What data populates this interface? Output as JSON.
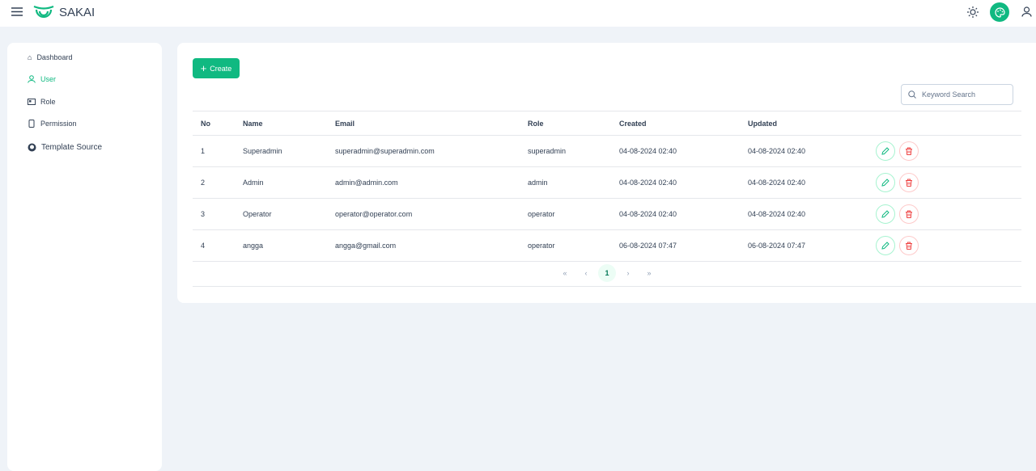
{
  "app": {
    "name": "SAKAI",
    "accent": "#10b981"
  },
  "topbar": {
    "icons": [
      "menu-icon",
      "sun-icon",
      "palette-icon",
      "user-icon"
    ]
  },
  "sidebar": {
    "items": [
      {
        "label": "Dashboard",
        "icon": "home-icon"
      },
      {
        "label": "User",
        "icon": "user-icon",
        "active": true
      },
      {
        "label": "Role",
        "icon": "id-card-icon"
      },
      {
        "label": "Permission",
        "icon": "mobile-icon"
      },
      {
        "label": "Template Source",
        "icon": "github-icon"
      }
    ]
  },
  "main": {
    "create_label": "Create",
    "search": {
      "placeholder": "Keyword Search",
      "value": ""
    },
    "table": {
      "columns": [
        "No",
        "Name",
        "Email",
        "Role",
        "Created",
        "Updated"
      ],
      "rows": [
        [
          "1",
          "Superadmin",
          "superadmin@superadmin.com",
          "superadmin",
          "04-08-2024 02:40",
          "04-08-2024 02:40"
        ],
        [
          "2",
          "Admin",
          "admin@admin.com",
          "admin",
          "04-08-2024 02:40",
          "04-08-2024 02:40"
        ],
        [
          "3",
          "Operator",
          "operator@operator.com",
          "operator",
          "04-08-2024 02:40",
          "04-08-2024 02:40"
        ],
        [
          "4",
          "angga",
          "angga@gmail.com",
          "operator",
          "06-08-2024 07:47",
          "06-08-2024 07:47"
        ]
      ]
    },
    "pagination": {
      "first": "«",
      "prev": "‹",
      "current": "1",
      "next": "›",
      "last": "»"
    }
  }
}
